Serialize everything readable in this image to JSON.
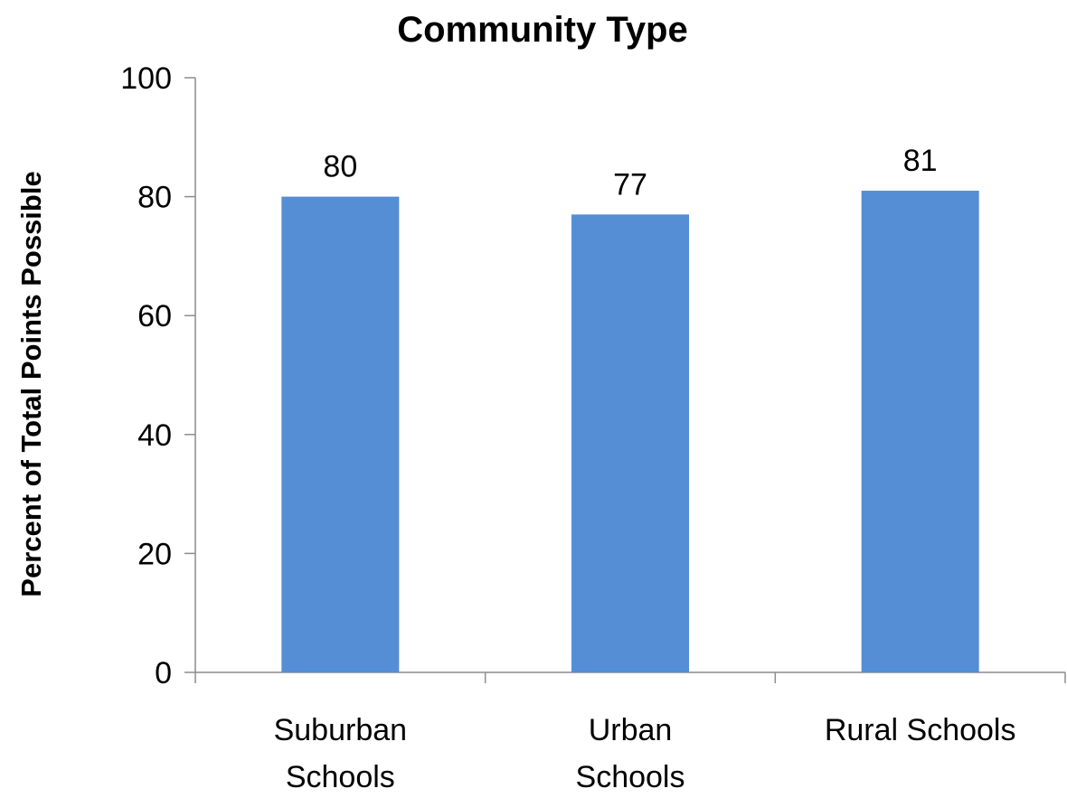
{
  "chart_data": {
    "type": "bar",
    "title": "Community Type",
    "xlabel": "",
    "ylabel": "Percent of Total Points Possible",
    "categories": [
      [
        "Suburban",
        "Schools"
      ],
      [
        "Urban",
        "Schools"
      ],
      [
        "Rural Schools"
      ]
    ],
    "values": [
      80,
      77,
      81
    ],
    "ylim": [
      0,
      100
    ],
    "yticks": [
      0,
      20,
      40,
      60,
      80,
      100
    ],
    "bar_color": "#558ED5",
    "grid": false,
    "legend": "none"
  }
}
